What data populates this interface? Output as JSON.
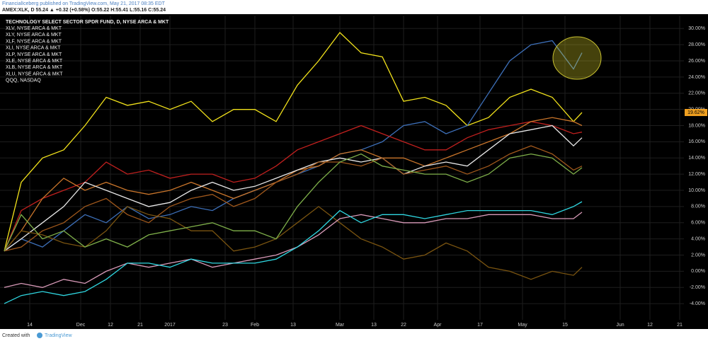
{
  "header": {
    "line1": "FinancialIceberg published on TradingView.com, May 21, 2017 08:35 EDT",
    "line2": "AMEX:XLK, D 55.24 ▲ +0.32 (+0.58%) O:55.22 H:55.41 L:55.16 C:55.24"
  },
  "footer": {
    "created": "Created with",
    "brand": "TradingView"
  },
  "chart_data": {
    "type": "line",
    "x": [
      1,
      5,
      10,
      15,
      20,
      25,
      30,
      35,
      40,
      45,
      50,
      55,
      60,
      65,
      70,
      75,
      80,
      85,
      90,
      95,
      100,
      105,
      110,
      115,
      120,
      125,
      130,
      135,
      137
    ],
    "xlim": [
      0,
      161
    ],
    "xticks": [
      {
        "value": 7,
        "label": "14"
      },
      {
        "value": 19,
        "label": "Dec"
      },
      {
        "value": 26,
        "label": "12"
      },
      {
        "value": 33,
        "label": "21"
      },
      {
        "value": 40,
        "label": "2017"
      },
      {
        "value": 53,
        "label": "23"
      },
      {
        "value": 60,
        "label": "Feb"
      },
      {
        "value": 69,
        "label": "13"
      },
      {
        "value": 80,
        "label": "Mar"
      },
      {
        "value": 88,
        "label": "13"
      },
      {
        "value": 95,
        "label": "22"
      },
      {
        "value": 103,
        "label": "Apr"
      },
      {
        "value": 113,
        "label": "17"
      },
      {
        "value": 123,
        "label": "May"
      },
      {
        "value": 133,
        "label": "15"
      },
      {
        "value": 146,
        "label": "Jun"
      },
      {
        "value": 153,
        "label": "12"
      },
      {
        "value": 160,
        "label": "21"
      }
    ],
    "ylim": [
      -6,
      31.6
    ],
    "yticks": [
      {
        "value": 30,
        "label": "30.00%"
      },
      {
        "value": 28,
        "label": "28.00%"
      },
      {
        "value": 26,
        "label": "26.00%"
      },
      {
        "value": 24,
        "label": "24.00%"
      },
      {
        "value": 22,
        "label": "22.00%"
      },
      {
        "value": 20,
        "label": "20.00%"
      },
      {
        "value": 18,
        "label": "18.00%"
      },
      {
        "value": 16,
        "label": "16.00%"
      },
      {
        "value": 14,
        "label": "14.00%"
      },
      {
        "value": 12,
        "label": "12.00%"
      },
      {
        "value": 10,
        "label": "10.00%"
      },
      {
        "value": 8,
        "label": "8.00%"
      },
      {
        "value": 6,
        "label": "6.00%"
      },
      {
        "value": 4,
        "label": "4.00%"
      },
      {
        "value": 2,
        "label": "2.00%"
      },
      {
        "value": 0,
        "label": "0.00%"
      },
      {
        "value": -2,
        "label": "-2.00%"
      },
      {
        "value": -4,
        "label": "-4.00%"
      }
    ],
    "grid": true,
    "last_label": {
      "value": 19.62,
      "label": "19.62%"
    },
    "series": [
      {
        "name": "TECHNOLOGY SELECT SECTOR SPDR FUND, D, NYSE ARCA & MKT",
        "color": "#f2e21b",
        "values": [
          2.5,
          11,
          14,
          15,
          18,
          21.5,
          20.5,
          21,
          20,
          21,
          18.5,
          20,
          20,
          18.5,
          23,
          26,
          29.5,
          27,
          26.5,
          21,
          21.5,
          20.5,
          18,
          19,
          21.5,
          22.5,
          21.5,
          18.5,
          19.62
        ]
      },
      {
        "name": "XLV, NYSE ARCA & MKT",
        "color": "#3d6fb8",
        "values": [
          2.5,
          4,
          3,
          5,
          7,
          6,
          8,
          6.5,
          7,
          8,
          7.5,
          9,
          10,
          11,
          12,
          13,
          14.5,
          15,
          16,
          18,
          18.5,
          17,
          18,
          22,
          26,
          28,
          28.5,
          25,
          27
        ]
      },
      {
        "name": "XLY, NYSE ARCA & MKT",
        "color": "#c0201e",
        "values": [
          2.5,
          7.5,
          9,
          10,
          11,
          13.5,
          12,
          12.5,
          11.5,
          12,
          12,
          11,
          11.5,
          13,
          15,
          16,
          17,
          18,
          17,
          16,
          15,
          15,
          16.5,
          17.5,
          18,
          18.5,
          18,
          17,
          17.2
        ]
      },
      {
        "name": "XLF, NYSE ARCA & MKT",
        "color": "#c8742a",
        "values": [
          2.5,
          5,
          9,
          11.5,
          10,
          11,
          10,
          9.5,
          10,
          11,
          10,
          9,
          10,
          11,
          12.5,
          13,
          14.5,
          15,
          14,
          14,
          13,
          14,
          15,
          16,
          17,
          18.5,
          19,
          18.5,
          18
        ]
      },
      {
        "name": "XLI, NYSE ARCA & MKT",
        "color": "#e8e8e8",
        "values": [
          2.5,
          4,
          6,
          8,
          11,
          10,
          9,
          8,
          8.5,
          10,
          11,
          10,
          10.5,
          11.5,
          12.5,
          13.5,
          14,
          13.5,
          14,
          12,
          13,
          13.5,
          13,
          15,
          17,
          17.5,
          18,
          15.5,
          16.5
        ]
      },
      {
        "name": "XLP, NYSE ARCA & MKT",
        "color": "#a0581c",
        "values": [
          2.5,
          3,
          5,
          6,
          8,
          9,
          7,
          6,
          8,
          9,
          9.5,
          8,
          9,
          11,
          12,
          13.5,
          13.5,
          13,
          14,
          12,
          12.5,
          13,
          12,
          13,
          14.5,
          15.5,
          14.5,
          12.5,
          13
        ]
      },
      {
        "name": "XLE, NYSE ARCA & MKT",
        "color": "#7a5410",
        "values": [
          2.5,
          5,
          4.5,
          3.5,
          3,
          5,
          8,
          7,
          6.5,
          5,
          5,
          2.5,
          3,
          4,
          6,
          8,
          6,
          4,
          3,
          1.5,
          2,
          3.5,
          2.5,
          0.5,
          0,
          -1,
          0,
          -0.5,
          0.5
        ]
      },
      {
        "name": "XLB, NYSE ARCA & MKT",
        "color": "#7fb04a",
        "values": [
          2.5,
          7,
          4,
          5,
          3,
          4,
          3,
          4.5,
          5,
          5.5,
          6,
          5,
          5,
          4,
          8,
          11,
          13.5,
          14.5,
          13,
          12.5,
          12,
          12,
          11,
          12,
          14,
          14.5,
          14,
          12,
          12.8
        ]
      },
      {
        "name": "XLU, NYSE ARCA & MKT",
        "color": "#d89ab8",
        "values": [
          -2,
          -1.5,
          -2,
          -1,
          -1.5,
          0,
          1,
          0.5,
          1,
          1.5,
          0.5,
          1,
          1.5,
          2,
          3,
          4.5,
          6.5,
          7,
          6.5,
          6,
          6,
          6.5,
          6.5,
          7,
          7,
          7,
          6.5,
          6.5,
          7.3
        ]
      },
      {
        "name": "QQQ, NASDAQ",
        "color": "#2fd6e0",
        "values": [
          -4,
          -3,
          -2.5,
          -3,
          -2.5,
          -1,
          1,
          1,
          0.5,
          1.5,
          1,
          1,
          1,
          1.5,
          3,
          5,
          7.5,
          6,
          7,
          7,
          6.5,
          7,
          7.5,
          7.5,
          7.5,
          7.5,
          7,
          8,
          8.6
        ]
      }
    ]
  }
}
